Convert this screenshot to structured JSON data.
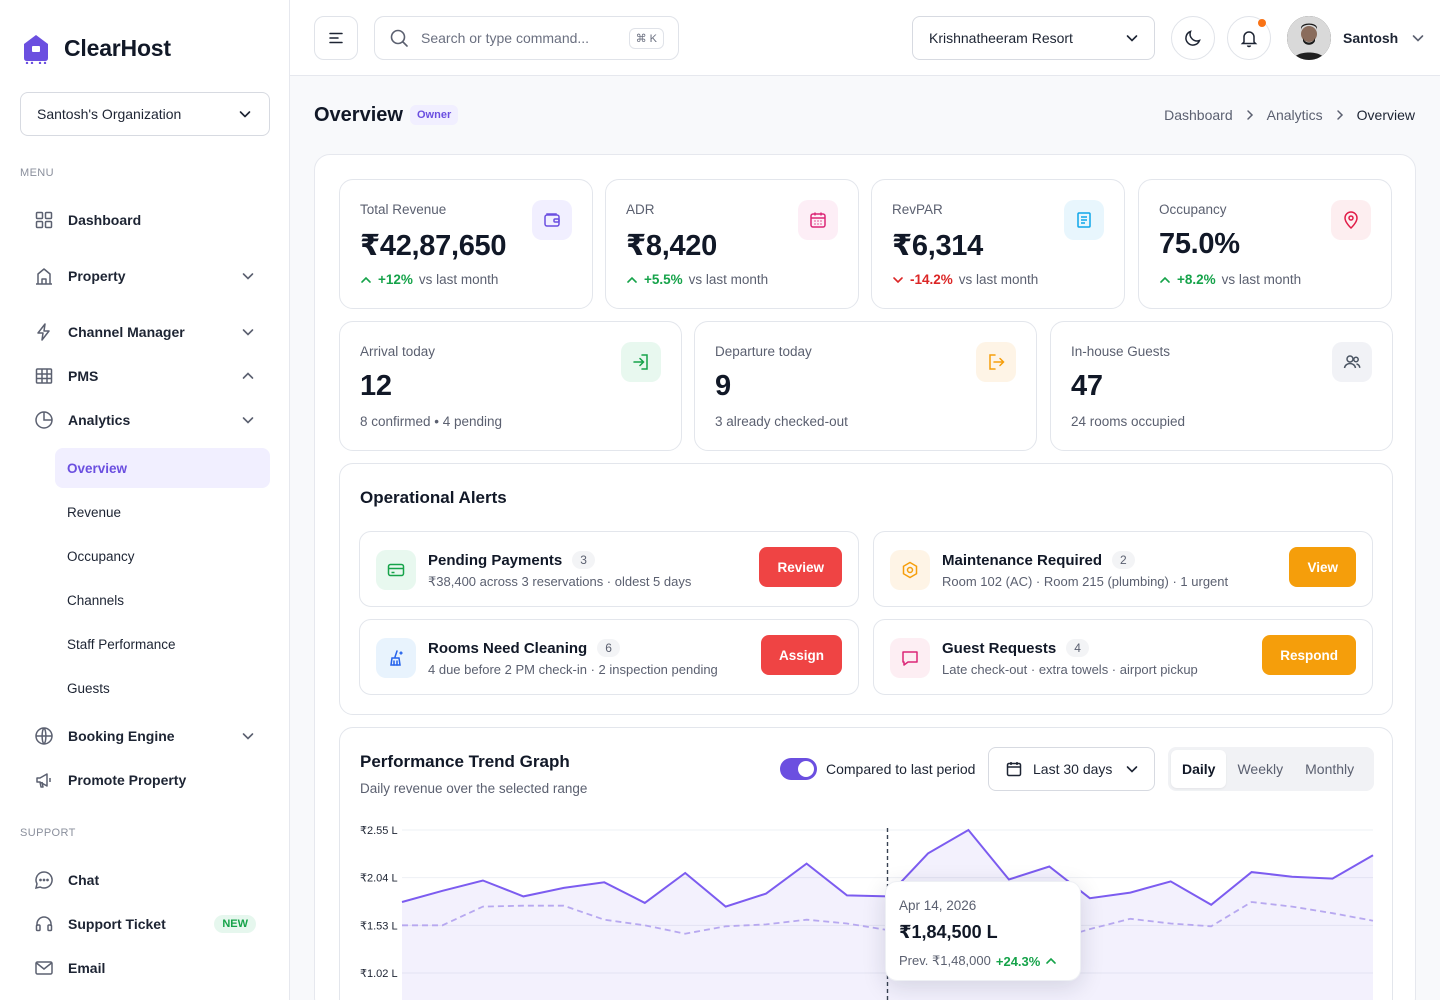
{
  "app": {
    "name": "ClearHost"
  },
  "sidebar": {
    "organization": "Santosh's Organization",
    "menu_label": "MENU",
    "support_label": "SUPPORT",
    "items": {
      "dashboard": "Dashboard",
      "property": "Property",
      "channel_manager": "Channel Manager",
      "pms": "PMS",
      "analytics": "Analytics",
      "booking_engine": "Booking Engine",
      "promote_property": "Promote Property"
    },
    "analytics_sub": {
      "overview": "Overview",
      "revenue": "Revenue",
      "occupancy": "Occupancy",
      "channels": "Channels",
      "staff_performance": "Staff Performance",
      "guests": "Guests"
    },
    "support": {
      "chat": "Chat",
      "support_ticket": "Support Ticket",
      "support_ticket_badge": "NEW",
      "email": "Email"
    }
  },
  "header": {
    "search_placeholder": "Search or type command...",
    "search_shortcut": "⌘ K",
    "property": "Krishnatheeram Resort",
    "user_name": "Santosh"
  },
  "page": {
    "title": "Overview",
    "role": "Owner",
    "breadcrumb": [
      "Dashboard",
      "Analytics",
      "Overview"
    ]
  },
  "kpis": [
    {
      "label": "Total Revenue",
      "value": "₹42,87,650",
      "change": "+12%",
      "suffix": "vs last month",
      "trend": "up"
    },
    {
      "label": "ADR",
      "value": "₹8,420",
      "change": "+5.5%",
      "suffix": "vs last month",
      "trend": "up"
    },
    {
      "label": "RevPAR",
      "value": "₹6,314",
      "change": "-14.2%",
      "suffix": "vs last month",
      "trend": "down"
    },
    {
      "label": "Occupancy",
      "value": "75.0%",
      "change": "+8.2%",
      "suffix": "vs last month",
      "trend": "up"
    }
  ],
  "today": [
    {
      "label": "Arrival today",
      "value": "12",
      "sub": "8 confirmed • 4 pending"
    },
    {
      "label": "Departure today",
      "value": "9",
      "sub": "3 already checked-out"
    },
    {
      "label": "In-house Guests",
      "value": "47",
      "sub": "24 rooms occupied"
    }
  ],
  "alerts": {
    "title": "Operational Alerts",
    "items": [
      {
        "name": "Pending Payments",
        "count": "3",
        "desc": "₹38,400 across 3 reservations · oldest 5 days",
        "action": "Review"
      },
      {
        "name": "Maintenance Required",
        "count": "2",
        "desc": "Room 102 (AC) · Room 215 (plumbing) · 1 urgent",
        "action": "View"
      },
      {
        "name": "Rooms Need Cleaning",
        "count": "6",
        "desc": "4 due before 2 PM check-in · 2 inspection pending",
        "action": "Assign"
      },
      {
        "name": "Guest Requests",
        "count": "4",
        "desc": "Late check-out · extra towels · airport pickup",
        "action": "Respond"
      }
    ]
  },
  "trend": {
    "title": "Performance Trend Graph",
    "subtitle": "Daily revenue over the selected range",
    "compare_label": "Compared to last period",
    "range": "Last 30 days",
    "granularity": [
      "Daily",
      "Weekly",
      "Monthly"
    ],
    "selected_granularity": "Daily",
    "tooltip": {
      "date": "Apr 14, 2026",
      "value": "₹1,84,500 L",
      "prev": "Prev. ₹1,48,000",
      "change": "+24.3%"
    }
  },
  "chart_data": {
    "type": "area",
    "y_ticks": [
      "₹2.55 L",
      "₹2.04 L",
      "₹1.53 L",
      "₹1.02 L"
    ],
    "y_tick_values": [
      2.55,
      2.04,
      1.53,
      1.02
    ],
    "ylim": [
      0.8,
      2.55
    ],
    "series": [
      {
        "values": [
          1.78,
          1.9,
          2.01,
          1.84,
          1.93,
          1.99,
          1.77,
          2.09,
          1.73,
          1.87,
          2.19,
          1.85,
          1.84,
          2.3,
          2.55,
          2.02,
          2.16,
          1.82,
          1.88,
          2.0,
          1.75,
          2.1,
          2.05,
          2.03,
          2.28
        ]
      },
      {
        "values": [
          1.53,
          1.53,
          1.73,
          1.74,
          1.74,
          1.59,
          1.53,
          1.44,
          1.52,
          1.54,
          1.59,
          1.55,
          1.48,
          1.5,
          1.43,
          1.46,
          1.36,
          1.49,
          1.6,
          1.55,
          1.52,
          1.78,
          1.73,
          1.66,
          1.58
        ]
      }
    ]
  },
  "colors": {
    "accent": "#6b4fe0",
    "up": "#16a34a",
    "down": "#dc2626",
    "danger": "#ef4444",
    "warning": "#f59e0b"
  }
}
